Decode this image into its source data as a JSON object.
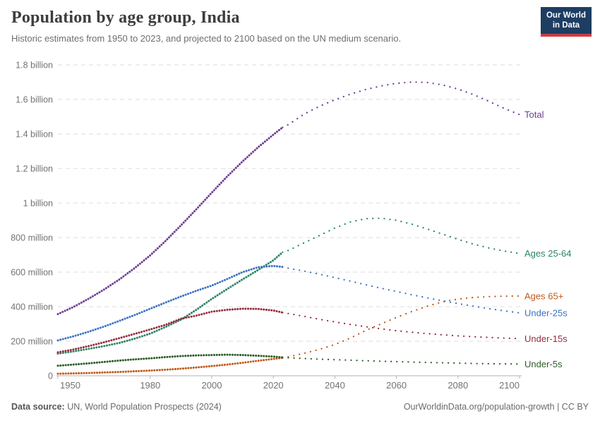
{
  "header": {
    "title": "Population by age group, India",
    "subtitle": "Historic estimates from 1950 to 2023, and projected to 2100 based on the UN medium scenario."
  },
  "logo": {
    "line1": "Our World",
    "line2": "in Data",
    "bg_color": "#1d3d63",
    "accent_color": "#d13b42"
  },
  "footer": {
    "source_label": "Data source:",
    "source_text": " UN, World Population Prospects (2024)",
    "link_text": "OurWorldinData.org/population-growth | CC BY"
  },
  "chart_data": {
    "type": "line",
    "title": "Population by age group, India",
    "subtitle": "Historic estimates from 1950 to 2023, and projected to 2100 based on the UN medium scenario.",
    "units": "millions of people",
    "x_range": [
      1950,
      2100
    ],
    "y_range_millions": [
      0,
      1800
    ],
    "historic_until": 2023,
    "grid": "dashed-horizontal",
    "legend_position": "right-of-line-ends",
    "line_style_historic": "dense-dotted",
    "line_style_projection": "sparse-dotted",
    "x_ticks": [
      1950,
      1980,
      2000,
      2020,
      2040,
      2060,
      2080,
      2100
    ],
    "y_ticks": [
      {
        "value": 1800,
        "label": "1.8 billion"
      },
      {
        "value": 1600,
        "label": "1.6 billion"
      },
      {
        "value": 1400,
        "label": "1.4 billion"
      },
      {
        "value": 1200,
        "label": "1.2 billion"
      },
      {
        "value": 1000,
        "label": "1 billion"
      },
      {
        "value": 800,
        "label": "800 million"
      },
      {
        "value": 600,
        "label": "600 million"
      },
      {
        "value": 400,
        "label": "400 million"
      },
      {
        "value": 200,
        "label": "200 million"
      },
      {
        "value": 0,
        "label": "0"
      }
    ],
    "series": [
      {
        "name": "Total",
        "color": "#6d3e91",
        "points": [
          [
            1950,
            357
          ],
          [
            1955,
            398
          ],
          [
            1960,
            446
          ],
          [
            1965,
            499
          ],
          [
            1970,
            558
          ],
          [
            1975,
            624
          ],
          [
            1980,
            697
          ],
          [
            1985,
            781
          ],
          [
            1990,
            871
          ],
          [
            1995,
            964
          ],
          [
            2000,
            1060
          ],
          [
            2005,
            1154
          ],
          [
            2010,
            1241
          ],
          [
            2015,
            1322
          ],
          [
            2020,
            1396
          ],
          [
            2023,
            1438
          ],
          [
            2025,
            1455
          ],
          [
            2030,
            1515
          ],
          [
            2035,
            1560
          ],
          [
            2040,
            1598
          ],
          [
            2045,
            1630
          ],
          [
            2050,
            1657
          ],
          [
            2055,
            1678
          ],
          [
            2060,
            1693
          ],
          [
            2065,
            1701
          ],
          [
            2070,
            1698
          ],
          [
            2075,
            1684
          ],
          [
            2080,
            1660
          ],
          [
            2085,
            1628
          ],
          [
            2090,
            1589
          ],
          [
            2095,
            1548
          ],
          [
            2100,
            1512
          ]
        ]
      },
      {
        "name": "Ages 25-64",
        "color": "#2c8465",
        "points": [
          [
            1950,
            128
          ],
          [
            1955,
            141
          ],
          [
            1960,
            156
          ],
          [
            1965,
            172
          ],
          [
            1970,
            190
          ],
          [
            1975,
            215
          ],
          [
            1980,
            244
          ],
          [
            1985,
            283
          ],
          [
            1990,
            325
          ],
          [
            1995,
            382
          ],
          [
            2000,
            445
          ],
          [
            2005,
            502
          ],
          [
            2010,
            558
          ],
          [
            2015,
            612
          ],
          [
            2020,
            668
          ],
          [
            2023,
            715
          ],
          [
            2025,
            726
          ],
          [
            2030,
            770
          ],
          [
            2035,
            812
          ],
          [
            2040,
            855
          ],
          [
            2045,
            890
          ],
          [
            2050,
            910
          ],
          [
            2055,
            912
          ],
          [
            2060,
            900
          ],
          [
            2065,
            878
          ],
          [
            2070,
            850
          ],
          [
            2075,
            820
          ],
          [
            2080,
            790
          ],
          [
            2085,
            762
          ],
          [
            2090,
            740
          ],
          [
            2095,
            722
          ],
          [
            2100,
            708
          ]
        ]
      },
      {
        "name": "Ages 65+",
        "color": "#c05a1b",
        "points": [
          [
            1950,
            12
          ],
          [
            1955,
            14
          ],
          [
            1960,
            16
          ],
          [
            1965,
            19
          ],
          [
            1970,
            22
          ],
          [
            1975,
            26
          ],
          [
            1980,
            30
          ],
          [
            1985,
            35
          ],
          [
            1990,
            41
          ],
          [
            1995,
            48
          ],
          [
            2000,
            56
          ],
          [
            2005,
            65
          ],
          [
            2010,
            75
          ],
          [
            2015,
            87
          ],
          [
            2020,
            97
          ],
          [
            2023,
            104
          ],
          [
            2025,
            110
          ],
          [
            2030,
            130
          ],
          [
            2035,
            153
          ],
          [
            2040,
            181
          ],
          [
            2045,
            218
          ],
          [
            2050,
            262
          ],
          [
            2055,
            300
          ],
          [
            2060,
            338
          ],
          [
            2065,
            372
          ],
          [
            2070,
            403
          ],
          [
            2075,
            428
          ],
          [
            2080,
            444
          ],
          [
            2085,
            453
          ],
          [
            2090,
            458
          ],
          [
            2095,
            461
          ],
          [
            2100,
            462
          ]
        ]
      },
      {
        "name": "Under-25s",
        "color": "#3b73c4",
        "points": [
          [
            1950,
            205
          ],
          [
            1955,
            228
          ],
          [
            1960,
            255
          ],
          [
            1965,
            285
          ],
          [
            1970,
            318
          ],
          [
            1975,
            352
          ],
          [
            1980,
            388
          ],
          [
            1985,
            424
          ],
          [
            1990,
            459
          ],
          [
            1995,
            492
          ],
          [
            2000,
            522
          ],
          [
            2005,
            560
          ],
          [
            2010,
            600
          ],
          [
            2015,
            628
          ],
          [
            2020,
            636
          ],
          [
            2023,
            630
          ],
          [
            2025,
            622
          ],
          [
            2030,
            606
          ],
          [
            2035,
            588
          ],
          [
            2040,
            568
          ],
          [
            2045,
            548
          ],
          [
            2050,
            527
          ],
          [
            2055,
            507
          ],
          [
            2060,
            488
          ],
          [
            2065,
            469
          ],
          [
            2070,
            451
          ],
          [
            2075,
            434
          ],
          [
            2080,
            418
          ],
          [
            2085,
            403
          ],
          [
            2090,
            389
          ],
          [
            2095,
            376
          ],
          [
            2100,
            364
          ]
        ]
      },
      {
        "name": "Under-15s",
        "color": "#952d3f",
        "points": [
          [
            1950,
            136
          ],
          [
            1955,
            152
          ],
          [
            1960,
            172
          ],
          [
            1965,
            194
          ],
          [
            1970,
            218
          ],
          [
            1975,
            243
          ],
          [
            1980,
            268
          ],
          [
            1985,
            295
          ],
          [
            1990,
            330
          ],
          [
            1995,
            348
          ],
          [
            2000,
            371
          ],
          [
            2005,
            382
          ],
          [
            2010,
            388
          ],
          [
            2015,
            387
          ],
          [
            2020,
            378
          ],
          [
            2023,
            366
          ],
          [
            2025,
            360
          ],
          [
            2030,
            344
          ],
          [
            2035,
            327
          ],
          [
            2040,
            312
          ],
          [
            2045,
            297
          ],
          [
            2050,
            284
          ],
          [
            2055,
            272
          ],
          [
            2060,
            261
          ],
          [
            2065,
            252
          ],
          [
            2070,
            244
          ],
          [
            2075,
            237
          ],
          [
            2080,
            231
          ],
          [
            2085,
            226
          ],
          [
            2090,
            222
          ],
          [
            2095,
            218
          ],
          [
            2100,
            215
          ]
        ]
      },
      {
        "name": "Under-5s",
        "color": "#2d5d28",
        "points": [
          [
            1950,
            58
          ],
          [
            1955,
            65
          ],
          [
            1960,
            72
          ],
          [
            1965,
            80
          ],
          [
            1970,
            88
          ],
          [
            1975,
            95
          ],
          [
            1980,
            101
          ],
          [
            1985,
            108
          ],
          [
            1990,
            114
          ],
          [
            1995,
            118
          ],
          [
            2000,
            120
          ],
          [
            2005,
            122
          ],
          [
            2010,
            120
          ],
          [
            2015,
            116
          ],
          [
            2020,
            111
          ],
          [
            2023,
            106
          ],
          [
            2025,
            104
          ],
          [
            2030,
            100
          ],
          [
            2035,
            96
          ],
          [
            2040,
            93
          ],
          [
            2045,
            90
          ],
          [
            2050,
            87
          ],
          [
            2055,
            84
          ],
          [
            2060,
            82
          ],
          [
            2065,
            79
          ],
          [
            2070,
            77
          ],
          [
            2075,
            75
          ],
          [
            2080,
            73
          ],
          [
            2085,
            71
          ],
          [
            2090,
            70
          ],
          [
            2095,
            69
          ],
          [
            2100,
            68
          ]
        ]
      }
    ]
  }
}
